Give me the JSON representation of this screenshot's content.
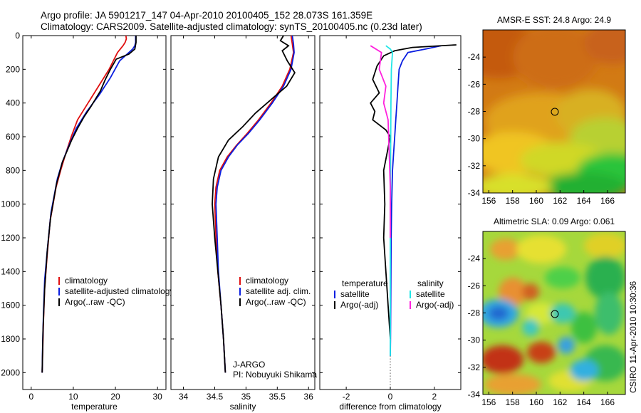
{
  "header": {
    "line1": "Argo profile: JA 5901217_147 04-Apr-2010 20100405_152 28.073S 161.359E",
    "line2": "Climatology: CARS2009. Satellite-adjusted climatology: synTS_20100405.nc (0.23d later)"
  },
  "side_note": "CSIRO 11-Apr-2010 10:30:36",
  "colors": {
    "climatology": "#e01010",
    "satellite": "#0a1ee0",
    "argo": "#000000",
    "sal_satellite": "#22e6e6",
    "sal_argo": "#ff22dd"
  },
  "chart_data": [
    {
      "type": "line",
      "id": "temperature",
      "xlabel": "temperature",
      "ylabel": "",
      "xlim": [
        -2,
        32
      ],
      "ylim": [
        2100,
        0
      ],
      "xticks": [
        0,
        10,
        20,
        30
      ],
      "yticks": [
        0,
        200,
        400,
        600,
        800,
        1000,
        1200,
        1400,
        1600,
        1800,
        2000
      ],
      "legend": [
        "climatology",
        "satellite-adjusted climatology",
        "Argo(..raw -QC)"
      ],
      "legend_placement": "lower-right",
      "series": [
        {
          "name": "climatology",
          "color": "#e01010",
          "x": [
            22.5,
            22.6,
            22.3,
            21.8,
            20.5,
            18.5,
            16.0,
            13.5,
            11.0,
            9.5,
            8.2,
            7.0,
            5.9,
            4.5,
            3.8,
            3.2,
            2.9,
            2.7,
            2.6
          ],
          "y": [
            0,
            20,
            40,
            60,
            100,
            200,
            300,
            400,
            500,
            600,
            700,
            800,
            900,
            1100,
            1300,
            1500,
            1700,
            1900,
            2000
          ]
        },
        {
          "name": "satellite-adjusted climatology",
          "color": "#0a1ee0",
          "x": [
            24.8,
            24.8,
            24.8,
            24.6,
            24.1,
            21.0,
            18.8,
            16.2,
            13.2,
            10.7,
            9.0,
            7.4,
            6.2,
            4.7,
            3.9,
            3.2,
            2.9,
            2.7,
            2.6
          ],
          "y": [
            0,
            20,
            40,
            60,
            80,
            150,
            250,
            350,
            450,
            550,
            650,
            750,
            850,
            1050,
            1250,
            1450,
            1650,
            1850,
            2000
          ]
        },
        {
          "name": "Argo(..raw -QC)",
          "color": "#000000",
          "x": [
            24.9,
            24.9,
            24.6,
            23.2,
            20.2,
            18.8,
            17.6,
            16.4,
            14.2,
            12.6,
            11.0,
            9.6,
            7.4,
            6.0,
            4.6,
            3.8,
            3.2,
            2.8,
            2.6
          ],
          "y": [
            0,
            40,
            80,
            110,
            140,
            200,
            260,
            330,
            420,
            480,
            550,
            620,
            750,
            880,
            1080,
            1280,
            1500,
            1750,
            2000
          ]
        }
      ]
    },
    {
      "type": "line",
      "id": "salinity",
      "xlabel": "salinity",
      "ylabel": "",
      "xlim": [
        33.8,
        36.1
      ],
      "ylim": [
        2100,
        0
      ],
      "xticks": [
        34,
        34.5,
        35,
        35.5,
        36
      ],
      "legend": [
        "climatology",
        "satellite adj. clim.",
        "Argo(..raw -QC)"
      ],
      "legend_placement": "lower-right",
      "annotations": [
        "J-ARGO",
        "PI: Nobuyuki Shikama"
      ],
      "series": [
        {
          "name": "climatology",
          "color": "#e01010",
          "x": [
            35.72,
            35.74,
            35.76,
            35.7,
            35.58,
            35.4,
            35.2,
            35.02,
            34.85,
            34.7,
            34.58,
            34.52,
            34.5,
            34.52,
            34.55,
            34.6,
            34.64,
            34.67
          ],
          "y": [
            0,
            50,
            100,
            200,
            300,
            400,
            500,
            580,
            650,
            720,
            800,
            900,
            1000,
            1200,
            1400,
            1600,
            1800,
            2000
          ]
        },
        {
          "name": "satellite adj. clim.",
          "color": "#0a1ee0",
          "x": [
            35.74,
            35.76,
            35.77,
            35.72,
            35.6,
            35.42,
            35.22,
            35.04,
            34.86,
            34.72,
            34.6,
            34.54,
            34.52,
            34.54,
            34.56,
            34.6,
            34.64,
            34.67
          ],
          "y": [
            0,
            50,
            100,
            200,
            300,
            400,
            500,
            580,
            650,
            720,
            800,
            900,
            1000,
            1200,
            1400,
            1600,
            1800,
            2000
          ]
        },
        {
          "name": "Argo(..raw -QC)",
          "color": "#000000",
          "x": [
            35.6,
            35.55,
            35.68,
            35.58,
            35.66,
            35.78,
            35.65,
            35.4,
            35.15,
            34.95,
            34.72,
            34.56,
            34.48,
            34.46,
            34.5,
            34.55,
            34.6,
            34.64,
            34.67
          ],
          "y": [
            0,
            30,
            60,
            90,
            150,
            220,
            300,
            380,
            460,
            540,
            620,
            720,
            850,
            1000,
            1200,
            1400,
            1600,
            1800,
            2000
          ]
        }
      ]
    },
    {
      "type": "line",
      "id": "difference",
      "xlabel": "difference from climatology",
      "ylabel": "",
      "xlim": [
        -3.2,
        3.2
      ],
      "ylim": [
        2100,
        0
      ],
      "xticks": [
        -2,
        0,
        2
      ],
      "legend": [
        "temperature",
        "satellite",
        "Argo(-adj)",
        "salinity",
        "satellite",
        "Argo(-adj)"
      ],
      "legend_placement": "lower-right",
      "series": [
        {
          "name": "temperature satellite",
          "color": "#0a1ee0",
          "x": [
            2.3,
            1.6,
            0.8,
            0.55,
            0.4,
            0.35,
            0.3,
            0.25,
            0.2,
            0.15,
            0.1,
            0.08,
            0.06,
            0.04,
            0.03,
            0.02,
            0.01,
            0.0
          ],
          "y": [
            60,
            80,
            100,
            150,
            200,
            300,
            400,
            500,
            600,
            700,
            800,
            900,
            1000,
            1200,
            1400,
            1600,
            1800,
            1900
          ]
        },
        {
          "name": "temperature Argo(-adj)",
          "color": "#000000",
          "x": [
            3.0,
            1.0,
            0.2,
            -0.3,
            -0.6,
            -0.8,
            -0.5,
            -0.9,
            -0.7,
            -0.8,
            -0.2,
            0.0,
            -0.3,
            -0.25,
            -0.3,
            -0.2,
            -0.1,
            0.0
          ],
          "y": [
            55,
            70,
            90,
            120,
            180,
            260,
            340,
            400,
            450,
            500,
            560,
            600,
            800,
            1000,
            1200,
            1400,
            1600,
            1800
          ]
        },
        {
          "name": "salinity satellite",
          "color": "#22e6e6",
          "x": [
            -0.2,
            0.0,
            0.1,
            0.05,
            0.03,
            0.02,
            0.01,
            0.0,
            0.0,
            0.0
          ],
          "y": [
            60,
            80,
            100,
            200,
            400,
            600,
            800,
            1200,
            1600,
            1900
          ]
        },
        {
          "name": "salinity Argo(-adj)",
          "color": "#ff22dd",
          "x": [
            -0.9,
            -0.4,
            -0.5,
            -0.2,
            -0.3,
            -0.1,
            -0.05,
            0.0,
            0.0
          ],
          "y": [
            60,
            100,
            200,
            300,
            400,
            500,
            700,
            900,
            1200
          ]
        }
      ]
    },
    {
      "type": "heatmap",
      "id": "sst_map",
      "title": "AMSR-E SST: 24.8 Argo: 24.9",
      "xticks": [
        156,
        158,
        160,
        162,
        164,
        166
      ],
      "yticks": [
        -24,
        -26,
        -28,
        -30,
        -32,
        -34
      ],
      "xlim": [
        155.5,
        167.5
      ],
      "ylim": [
        -34,
        -22
      ]
    },
    {
      "type": "heatmap",
      "id": "sla_map",
      "title": "Altimetric SLA: 0.09 Argo: 0.061",
      "xticks": [
        156,
        158,
        160,
        162,
        164,
        166
      ],
      "yticks": [
        -24,
        -26,
        -28,
        -30,
        -32,
        -34
      ],
      "xlim": [
        155.5,
        167.5
      ],
      "ylim": [
        -34,
        -22
      ]
    }
  ]
}
